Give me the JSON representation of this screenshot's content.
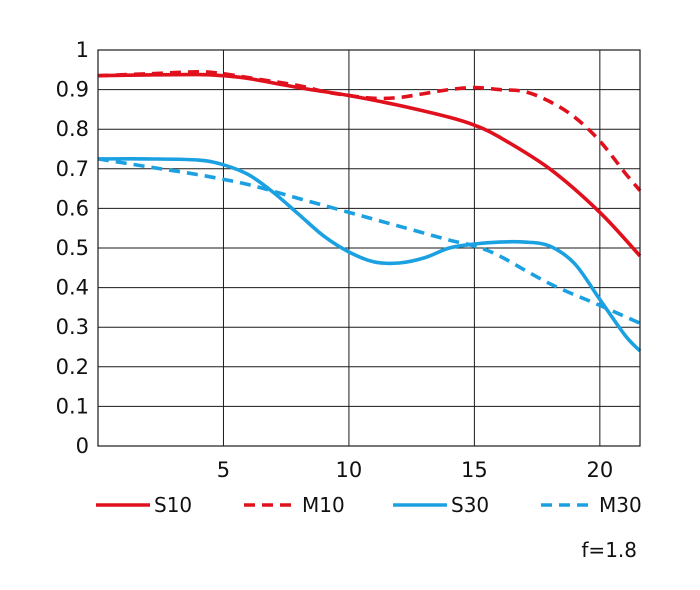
{
  "chart_data": {
    "type": "line",
    "title": "",
    "xlabel": "",
    "ylabel": "",
    "xlim": [
      0,
      21.6
    ],
    "ylim": [
      0,
      1
    ],
    "x_ticks": [
      5,
      10,
      15,
      20
    ],
    "x_tick_labels": [
      "5",
      "10",
      "15",
      "20"
    ],
    "y_ticks": [
      0,
      0.1,
      0.2,
      0.3,
      0.4,
      0.5,
      0.6,
      0.7,
      0.8,
      0.9,
      1
    ],
    "y_tick_labels": [
      "0",
      "0.1",
      "0.2",
      "0.3",
      "0.4",
      "0.5",
      "0.6",
      "0.7",
      "0.8",
      "0.9",
      "1"
    ],
    "grid": true,
    "legend_position": "bottom",
    "note": "f=1.8",
    "series": [
      {
        "name": "S10",
        "color": "#e0101d",
        "dash": "solid",
        "x": [
          0,
          2,
          4,
          5,
          6,
          8,
          10,
          12,
          14,
          15,
          16,
          18,
          20,
          21.6
        ],
        "y": [
          0.935,
          0.937,
          0.938,
          0.935,
          0.928,
          0.905,
          0.885,
          0.86,
          0.83,
          0.81,
          0.78,
          0.7,
          0.59,
          0.48
        ]
      },
      {
        "name": "M10",
        "color": "#e0101d",
        "dash": "dashed",
        "x": [
          0,
          2,
          4,
          5,
          6,
          8,
          9,
          10,
          11,
          12,
          13,
          14,
          15,
          16,
          17,
          18,
          19,
          20,
          21,
          21.6
        ],
        "y": [
          0.935,
          0.94,
          0.945,
          0.94,
          0.93,
          0.91,
          0.895,
          0.885,
          0.878,
          0.88,
          0.89,
          0.9,
          0.905,
          0.9,
          0.895,
          0.87,
          0.83,
          0.77,
          0.69,
          0.645
        ]
      },
      {
        "name": "S30",
        "color": "#1ba1e2",
        "dash": "solid",
        "x": [
          0,
          2,
          4,
          5,
          6,
          7,
          8,
          9,
          10,
          11,
          12,
          13,
          14,
          15,
          16,
          17,
          18,
          19,
          20,
          21,
          21.6
        ],
        "y": [
          0.725,
          0.725,
          0.722,
          0.71,
          0.685,
          0.64,
          0.585,
          0.53,
          0.49,
          0.465,
          0.462,
          0.475,
          0.5,
          0.51,
          0.515,
          0.515,
          0.505,
          0.46,
          0.37,
          0.28,
          0.24
        ]
      },
      {
        "name": "M30",
        "color": "#1ba1e2",
        "dash": "dashed",
        "x": [
          0,
          2,
          4,
          6,
          8,
          10,
          12,
          14,
          15,
          16,
          18,
          20,
          21.6
        ],
        "y": [
          0.725,
          0.705,
          0.685,
          0.66,
          0.625,
          0.59,
          0.555,
          0.52,
          0.505,
          0.48,
          0.41,
          0.355,
          0.31
        ]
      }
    ]
  }
}
